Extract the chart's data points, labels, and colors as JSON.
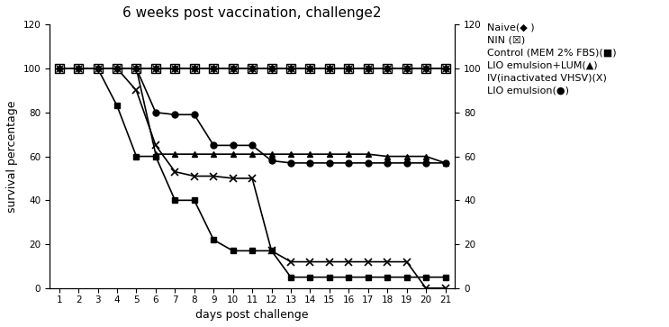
{
  "title": "6 weeks post vaccination, challenge2",
  "xlabel": "days post challenge",
  "ylabel": "survival percentage",
  "days": [
    1,
    2,
    3,
    4,
    5,
    6,
    7,
    8,
    9,
    10,
    11,
    12,
    13,
    14,
    15,
    16,
    17,
    18,
    19,
    20,
    21
  ],
  "series": {
    "Naive": {
      "values": [
        100,
        100,
        100,
        100,
        100,
        100,
        100,
        100,
        100,
        100,
        100,
        100,
        100,
        100,
        100,
        100,
        100,
        100,
        100,
        100,
        100
      ],
      "marker": "D",
      "markersize": 4,
      "color": "#000000",
      "linewidth": 1.2,
      "label": "Naive(◆ )"
    },
    "NIN": {
      "values": [
        100,
        100,
        100,
        100,
        100,
        100,
        100,
        100,
        100,
        100,
        100,
        100,
        100,
        100,
        100,
        100,
        100,
        100,
        100,
        100,
        100
      ],
      "marker": "s",
      "markersize": 5,
      "color": "#000000",
      "linewidth": 1.2,
      "label": "NIN (☒)"
    },
    "LIO": {
      "values": [
        100,
        100,
        100,
        100,
        100,
        80,
        79,
        79,
        65,
        65,
        65,
        58,
        57,
        57,
        57,
        57,
        57,
        57,
        57,
        57,
        57
      ],
      "marker": "o",
      "markersize": 5,
      "color": "#000000",
      "linewidth": 1.2,
      "label": "LIO emulsion(●)"
    },
    "LIO_LUM": {
      "values": [
        100,
        100,
        100,
        100,
        100,
        61,
        61,
        61,
        61,
        61,
        61,
        61,
        61,
        61,
        61,
        61,
        61,
        60,
        60,
        60,
        57
      ],
      "marker": "^",
      "markersize": 5,
      "color": "#000000",
      "linewidth": 1.2,
      "label": "LIO emulsion+LUM(▲)"
    },
    "IV": {
      "values": [
        100,
        100,
        100,
        100,
        90,
        65,
        53,
        51,
        51,
        50,
        50,
        17,
        12,
        12,
        12,
        12,
        12,
        12,
        12,
        0,
        0
      ],
      "marker": "x",
      "markersize": 6,
      "color": "#000000",
      "linewidth": 1.2,
      "label": "IV(inactivated VHSV)(X)"
    },
    "Control": {
      "values": [
        100,
        100,
        100,
        83,
        60,
        60,
        40,
        40,
        22,
        17,
        17,
        17,
        5,
        5,
        5,
        5,
        5,
        5,
        5,
        5,
        5
      ],
      "marker": "s",
      "markersize": 4,
      "color": "#000000",
      "linewidth": 1.2,
      "label": "Control (MEM 2% FBS)(■)"
    }
  },
  "ylim": [
    0,
    120
  ],
  "xlim": [
    0.5,
    21.5
  ],
  "yticks": [
    0,
    20,
    40,
    60,
    80,
    100,
    120
  ],
  "xticks": [
    1,
    2,
    3,
    4,
    5,
    6,
    7,
    8,
    9,
    10,
    11,
    12,
    13,
    14,
    15,
    16,
    17,
    18,
    19,
    20,
    21
  ],
  "background_color": "#ffffff",
  "legend_labels": [
    "Naive(◆ )",
    "NIN (☒)",
    "Control (MEM 2% FBS)(■)",
    "LIO emulsion+LUM(▲)",
    "IV(inactivated VHSV)(X)",
    "LIO emulsion(●)"
  ]
}
